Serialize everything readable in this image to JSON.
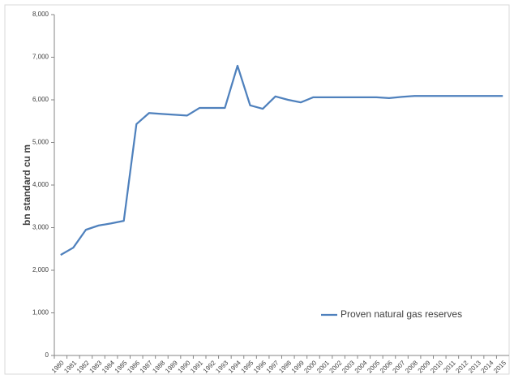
{
  "chart_data": {
    "type": "line",
    "y_label": "bn standard cu m",
    "categories": [
      "1980",
      "1981",
      "1982",
      "1983",
      "1984",
      "1985",
      "1986",
      "1987",
      "1988",
      "1989",
      "1990",
      "1991",
      "1992",
      "1993",
      "1994",
      "1995",
      "1996",
      "1997",
      "1998",
      "1999",
      "2000",
      "2001",
      "2002",
      "2003",
      "2004",
      "2005",
      "2006",
      "2007",
      "2008",
      "2009",
      "2010",
      "2011",
      "2012",
      "2013",
      "2014",
      "2015"
    ],
    "series": [
      {
        "name": "Proven natural gas reserves",
        "color": "#4f81bd",
        "values": [
          2360,
          2530,
          2950,
          3050,
          3100,
          3160,
          5430,
          5690,
          5670,
          5650,
          5630,
          5810,
          5810,
          5810,
          6800,
          5870,
          5790,
          6080,
          6000,
          5940,
          6060,
          6060,
          6060,
          6060,
          6060,
          6060,
          6040,
          6070,
          6090,
          6090,
          6090,
          6090,
          6090,
          6090,
          6090,
          6090
        ]
      }
    ],
    "ylim": [
      0,
      8000
    ],
    "yticks": [
      0,
      {
        "value": 1000,
        "label": "1,000"
      },
      {
        "value": 2000,
        "label": "2,000"
      },
      {
        "value": 3000,
        "label": "3,000"
      },
      {
        "value": 4000,
        "label": "4,000"
      },
      {
        "value": 5000,
        "label": "5,000"
      },
      {
        "value": 6000,
        "label": "6,000"
      },
      {
        "value": 7000,
        "label": "7,000"
      },
      {
        "value": 8000,
        "label": "8,000"
      }
    ],
    "grid": false,
    "legend": "inside-lower-right"
  }
}
